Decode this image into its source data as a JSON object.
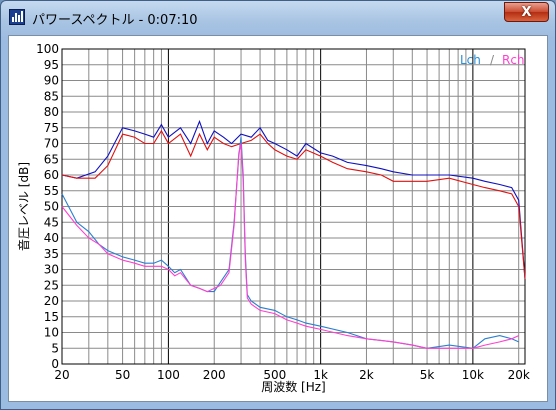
{
  "window": {
    "title": "パワースペクトル - 0:07:10",
    "close_label": "X"
  },
  "chart_data": {
    "type": "line",
    "title": "",
    "xlabel": "周波数 [Hz]",
    "ylabel": "音圧レベル [dB]",
    "xscale": "log",
    "xlim": [
      20,
      22000
    ],
    "ylim": [
      0,
      100
    ],
    "grid": true,
    "legend": {
      "placement": "top-right",
      "left": "Lch",
      "separator": "/",
      "right": "Rch"
    },
    "x_ticks": [
      {
        "value": 20,
        "label": "20"
      },
      {
        "value": 50,
        "label": "50"
      },
      {
        "value": 100,
        "label": "100"
      },
      {
        "value": 200,
        "label": "200"
      },
      {
        "value": 500,
        "label": "500"
      },
      {
        "value": 1000,
        "label": "1k"
      },
      {
        "value": 2000,
        "label": "2k"
      },
      {
        "value": 5000,
        "label": "5k"
      },
      {
        "value": 10000,
        "label": "10k"
      },
      {
        "value": 20000,
        "label": "20k"
      }
    ],
    "y_ticks": [
      "0",
      "5",
      "10",
      "15",
      "20",
      "25",
      "30",
      "35",
      "40",
      "45",
      "50",
      "55",
      "60",
      "65",
      "70",
      "75",
      "80",
      "85",
      "90",
      "95",
      "100"
    ],
    "series": [
      {
        "name": "Lch",
        "color": "#1010c0",
        "x": [
          20,
          25,
          33,
          40,
          50,
          60,
          70,
          80,
          90,
          100,
          120,
          140,
          160,
          180,
          200,
          230,
          260,
          300,
          350,
          400,
          450,
          500,
          600,
          700,
          800,
          1000,
          1200,
          1500,
          2000,
          2500,
          3000,
          4000,
          5000,
          7000,
          10000,
          12000,
          15000,
          18000,
          20000,
          22000
        ],
        "y": [
          60,
          59,
          61,
          66,
          75,
          74,
          73,
          72,
          76,
          72,
          75,
          70,
          77,
          70,
          74,
          72,
          70,
          73,
          72,
          75,
          71,
          70,
          68,
          66,
          70,
          67,
          66,
          64,
          63,
          62,
          61,
          60,
          60,
          60,
          59,
          58,
          57,
          56,
          52,
          27
        ]
      },
      {
        "name": "Rch",
        "color": "#e01010",
        "x": [
          20,
          25,
          33,
          40,
          50,
          60,
          70,
          80,
          90,
          100,
          120,
          140,
          160,
          180,
          200,
          230,
          260,
          300,
          350,
          400,
          450,
          500,
          600,
          700,
          800,
          1000,
          1200,
          1500,
          2000,
          2500,
          3000,
          4000,
          5000,
          7000,
          10000,
          12000,
          15000,
          18000,
          20000,
          22000
        ],
        "y": [
          60,
          59,
          59,
          63,
          73,
          72,
          70,
          70,
          74,
          70,
          73,
          66,
          73,
          68,
          72,
          70,
          69,
          70,
          71,
          73,
          70,
          68,
          66,
          65,
          68,
          66,
          64,
          62,
          61,
          60,
          58,
          58,
          58,
          59,
          57,
          56,
          55,
          54,
          50,
          27
        ]
      },
      {
        "name": "Lch",
        "color": "#2a7fd0",
        "x": [
          20,
          25,
          30,
          35,
          40,
          50,
          60,
          70,
          80,
          90,
          100,
          110,
          120,
          140,
          160,
          180,
          200,
          220,
          250,
          270,
          290,
          300,
          310,
          320,
          330,
          350,
          400,
          500,
          600,
          700,
          800,
          1000,
          1500,
          2000,
          3000,
          4000,
          5000,
          7000,
          10000,
          12000,
          15000,
          18000,
          20000
        ],
        "y": [
          54,
          45,
          42,
          38,
          36,
          34,
          33,
          32,
          32,
          33,
          31,
          29,
          30,
          25,
          24,
          23,
          23,
          26,
          30,
          45,
          66,
          72,
          60,
          35,
          22,
          20,
          18,
          17,
          15,
          14,
          13,
          12,
          10,
          8,
          7,
          6,
          5,
          6,
          5,
          8,
          9,
          8,
          7
        ]
      },
      {
        "name": "Rch",
        "color": "#ff40d0",
        "x": [
          20,
          25,
          30,
          35,
          40,
          50,
          60,
          70,
          80,
          90,
          100,
          110,
          120,
          140,
          160,
          180,
          200,
          220,
          250,
          270,
          290,
          300,
          310,
          320,
          330,
          350,
          400,
          500,
          600,
          700,
          800,
          1000,
          1500,
          2000,
          3000,
          4000,
          5000,
          7000,
          10000,
          12000,
          15000,
          18000,
          20000
        ],
        "y": [
          50,
          44,
          40,
          38,
          35,
          33,
          32,
          31,
          31,
          31,
          30,
          28,
          29,
          25,
          24,
          23,
          24,
          25,
          29,
          44,
          67,
          70,
          58,
          33,
          21,
          19,
          17,
          16,
          14,
          13,
          12,
          11,
          9,
          8,
          7,
          6,
          5,
          5,
          5,
          6,
          7,
          8,
          9
        ]
      }
    ]
  }
}
